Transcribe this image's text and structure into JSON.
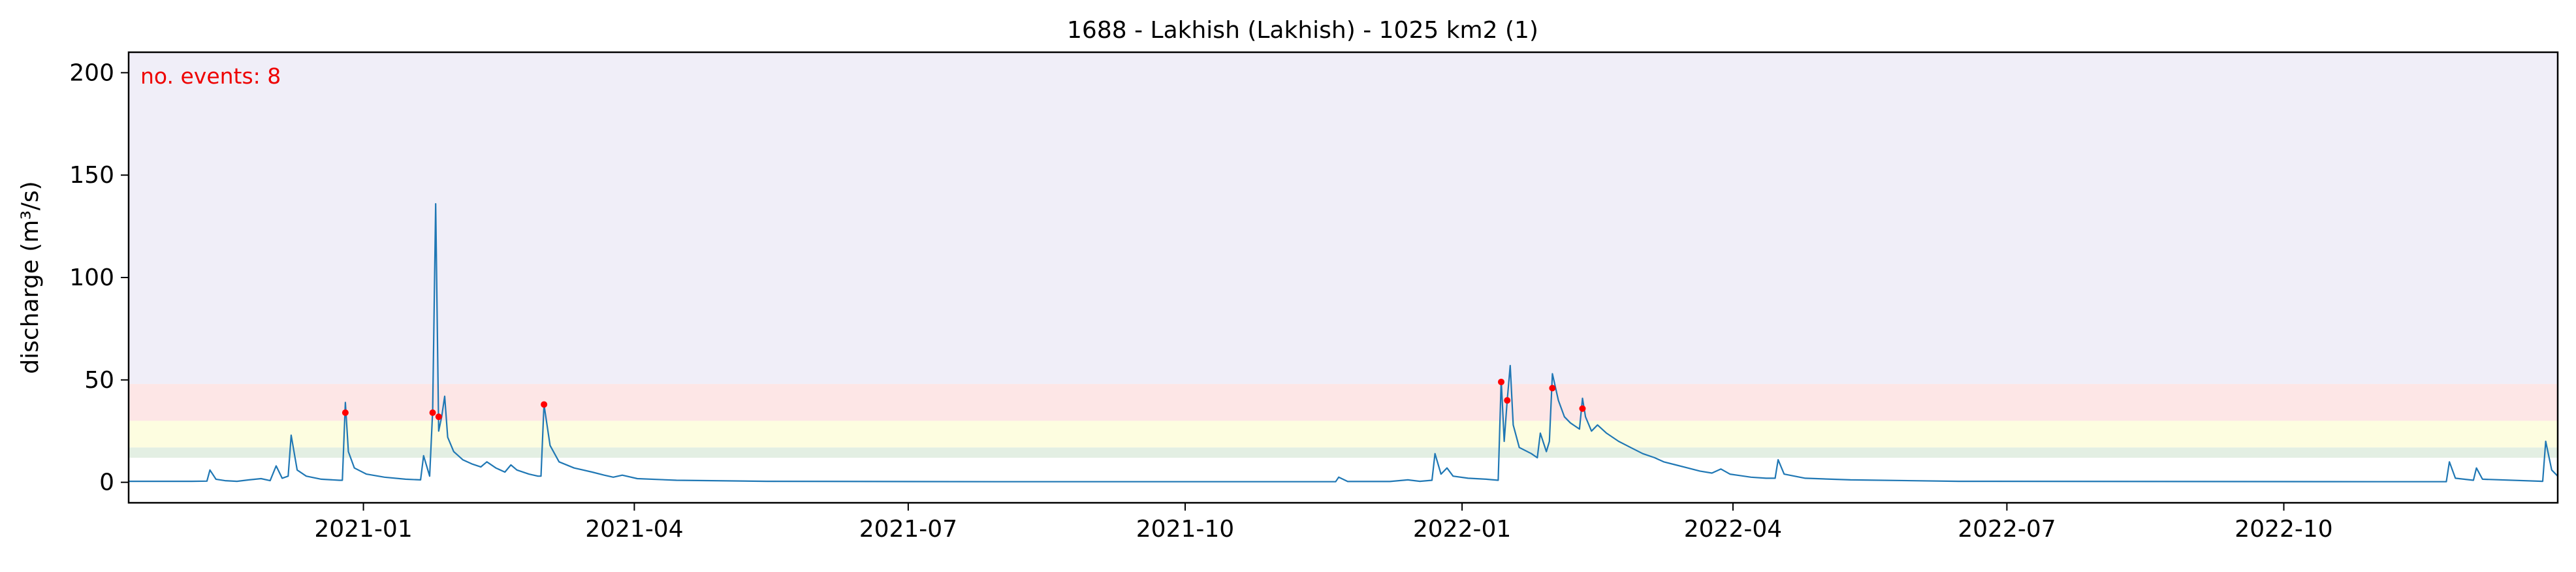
{
  "chart_data": {
    "type": "line",
    "title": "1688 - Lakhish (Lakhish) - 1025 km2 (1)",
    "xlabel": "",
    "ylabel": "discharge (m³/s)",
    "annotation": "no. events: 8",
    "xlim": [
      "2020-10-15",
      "2022-12-31"
    ],
    "ylim": [
      -10,
      210
    ],
    "yticks": [
      0,
      50,
      100,
      150,
      200
    ],
    "xticks": [
      {
        "date": "2021-01-01",
        "label": "2021-01"
      },
      {
        "date": "2021-04-01",
        "label": "2021-04"
      },
      {
        "date": "2021-07-01",
        "label": "2021-07"
      },
      {
        "date": "2021-10-01",
        "label": "2021-10"
      },
      {
        "date": "2022-01-01",
        "label": "2022-01"
      },
      {
        "date": "2022-04-01",
        "label": "2022-04"
      },
      {
        "date": "2022-07-01",
        "label": "2022-07"
      },
      {
        "date": "2022-10-01",
        "label": "2022-10"
      }
    ],
    "bands": [
      {
        "y0": 48,
        "y1": 210,
        "color": "#f0eef8"
      },
      {
        "y0": 30,
        "y1": 48,
        "color": "#fde6e6"
      },
      {
        "y0": 17,
        "y1": 30,
        "color": "#fdfde0"
      },
      {
        "y0": 12,
        "y1": 17,
        "color": "#e3efe3"
      }
    ],
    "line_color": "#1f77b4",
    "event_color": "#ff0000",
    "series": [
      {
        "points": [
          [
            "2020-10-15",
            0.5
          ],
          [
            "2020-11-05",
            0.5
          ],
          [
            "2020-11-10",
            0.6
          ],
          [
            "2020-11-11",
            6
          ],
          [
            "2020-11-13",
            1.5
          ],
          [
            "2020-11-16",
            0.8
          ],
          [
            "2020-11-20",
            0.5
          ],
          [
            "2020-11-24",
            1.2
          ],
          [
            "2020-11-28",
            1.8
          ],
          [
            "2020-12-01",
            0.8
          ],
          [
            "2020-12-03",
            8
          ],
          [
            "2020-12-05",
            2
          ],
          [
            "2020-12-07",
            3
          ],
          [
            "2020-12-08",
            23
          ],
          [
            "2020-12-10",
            6
          ],
          [
            "2020-12-13",
            3
          ],
          [
            "2020-12-18",
            1.5
          ],
          [
            "2020-12-24",
            1
          ],
          [
            "2020-12-25",
            1
          ],
          [
            "2020-12-26",
            39
          ],
          [
            "2020-12-27",
            15
          ],
          [
            "2020-12-29",
            7
          ],
          [
            "2021-01-02",
            4
          ],
          [
            "2021-01-08",
            2.5
          ],
          [
            "2021-01-15",
            1.5
          ],
          [
            "2021-01-20",
            1.2
          ],
          [
            "2021-01-21",
            13
          ],
          [
            "2021-01-23",
            3
          ],
          [
            "2021-01-24",
            35
          ],
          [
            "2021-01-25",
            136
          ],
          [
            "2021-01-26",
            25
          ],
          [
            "2021-01-27",
            32
          ],
          [
            "2021-01-28",
            42
          ],
          [
            "2021-01-29",
            22
          ],
          [
            "2021-01-31",
            15
          ],
          [
            "2021-02-03",
            11
          ],
          [
            "2021-02-06",
            9
          ],
          [
            "2021-02-09",
            7.5
          ],
          [
            "2021-02-11",
            10
          ],
          [
            "2021-02-14",
            7
          ],
          [
            "2021-02-17",
            5
          ],
          [
            "2021-02-19",
            8.5
          ],
          [
            "2021-02-21",
            6
          ],
          [
            "2021-02-25",
            4
          ],
          [
            "2021-02-28",
            3
          ],
          [
            "2021-03-01",
            3
          ],
          [
            "2021-03-02",
            38
          ],
          [
            "2021-03-04",
            18
          ],
          [
            "2021-03-07",
            10
          ],
          [
            "2021-03-12",
            7
          ],
          [
            "2021-03-18",
            5
          ],
          [
            "2021-03-22",
            3.5
          ],
          [
            "2021-03-25",
            2.5
          ],
          [
            "2021-03-28",
            3.5
          ],
          [
            "2021-04-02",
            1.8
          ],
          [
            "2021-04-15",
            1
          ],
          [
            "2021-05-15",
            0.5
          ],
          [
            "2021-08-01",
            0.3
          ],
          [
            "2021-11-20",
            0.3
          ],
          [
            "2021-11-21",
            2.5
          ],
          [
            "2021-11-24",
            0.4
          ],
          [
            "2021-12-08",
            0.4
          ],
          [
            "2021-12-14",
            1.2
          ],
          [
            "2021-12-18",
            0.5
          ],
          [
            "2021-12-22",
            1
          ],
          [
            "2021-12-23",
            14
          ],
          [
            "2021-12-25",
            4
          ],
          [
            "2021-12-27",
            7
          ],
          [
            "2021-12-29",
            3
          ],
          [
            "2022-01-03",
            2
          ],
          [
            "2022-01-09",
            1.5
          ],
          [
            "2022-01-13",
            1
          ],
          [
            "2022-01-14",
            50
          ],
          [
            "2022-01-15",
            20
          ],
          [
            "2022-01-16",
            40
          ],
          [
            "2022-01-17",
            57
          ],
          [
            "2022-01-18",
            28
          ],
          [
            "2022-01-20",
            17
          ],
          [
            "2022-01-24",
            14
          ],
          [
            "2022-01-26",
            12
          ],
          [
            "2022-01-27",
            24
          ],
          [
            "2022-01-29",
            15
          ],
          [
            "2022-01-30",
            20
          ],
          [
            "2022-01-31",
            53
          ],
          [
            "2022-02-02",
            40
          ],
          [
            "2022-02-04",
            32
          ],
          [
            "2022-02-06",
            29
          ],
          [
            "2022-02-09",
            26
          ],
          [
            "2022-02-10",
            41
          ],
          [
            "2022-02-11",
            32
          ],
          [
            "2022-02-13",
            25
          ],
          [
            "2022-02-15",
            28
          ],
          [
            "2022-02-18",
            24
          ],
          [
            "2022-02-22",
            20
          ],
          [
            "2022-02-26",
            17
          ],
          [
            "2022-03-02",
            14
          ],
          [
            "2022-03-06",
            12
          ],
          [
            "2022-03-09",
            10
          ],
          [
            "2022-03-13",
            8.5
          ],
          [
            "2022-03-17",
            7
          ],
          [
            "2022-03-21",
            5.5
          ],
          [
            "2022-03-25",
            4.5
          ],
          [
            "2022-03-28",
            6.5
          ],
          [
            "2022-03-31",
            4
          ],
          [
            "2022-04-07",
            2.5
          ],
          [
            "2022-04-12",
            2
          ],
          [
            "2022-04-15",
            2
          ],
          [
            "2022-04-16",
            11
          ],
          [
            "2022-04-18",
            4
          ],
          [
            "2022-04-25",
            2
          ],
          [
            "2022-05-10",
            1.2
          ],
          [
            "2022-06-15",
            0.5
          ],
          [
            "2022-11-01",
            0.3
          ],
          [
            "2022-11-24",
            0.3
          ],
          [
            "2022-11-25",
            10
          ],
          [
            "2022-11-27",
            2
          ],
          [
            "2022-12-03",
            1
          ],
          [
            "2022-12-04",
            7
          ],
          [
            "2022-12-06",
            1.5
          ],
          [
            "2022-12-26",
            0.5
          ],
          [
            "2022-12-27",
            20
          ],
          [
            "2022-12-29",
            6
          ],
          [
            "2022-12-31",
            3
          ]
        ]
      }
    ],
    "events": [
      [
        "2020-12-26",
        34
      ],
      [
        "2021-01-24",
        34
      ],
      [
        "2021-01-26",
        32
      ],
      [
        "2021-03-02",
        38
      ],
      [
        "2022-01-14",
        49
      ],
      [
        "2022-01-16",
        40
      ],
      [
        "2022-01-31",
        46
      ],
      [
        "2022-02-10",
        36
      ]
    ]
  }
}
